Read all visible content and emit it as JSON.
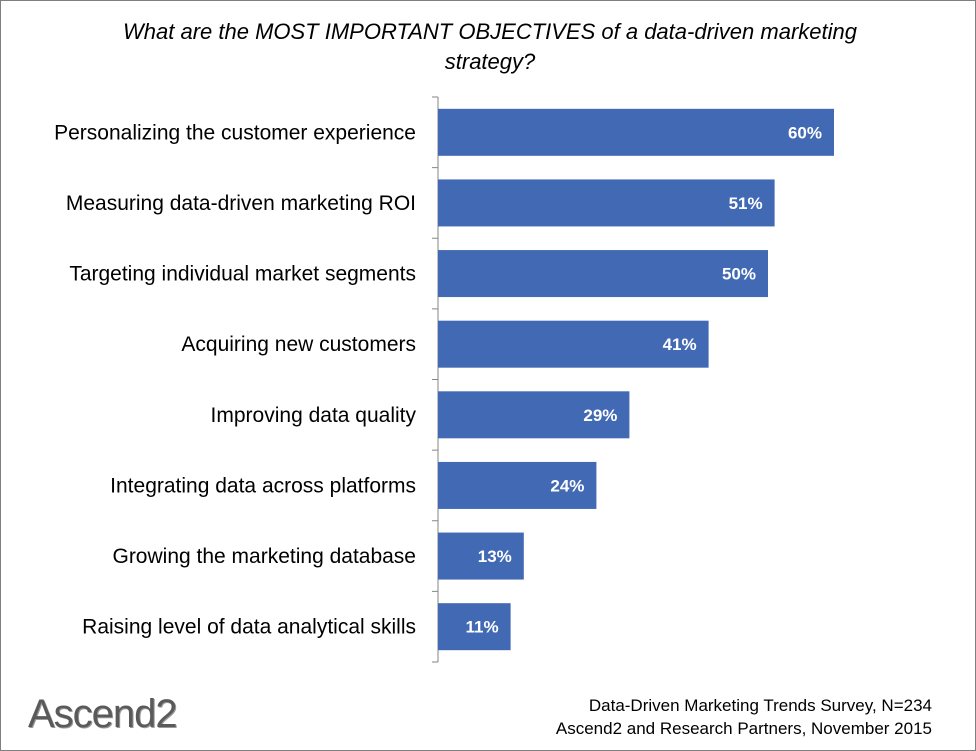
{
  "chart_data": {
    "type": "bar",
    "orientation": "horizontal",
    "title": "What are the MOST IMPORTANT OBJECTIVES of a data-driven marketing strategy?",
    "categories": [
      "Personalizing the customer experience",
      "Measuring data-driven marketing ROI",
      "Targeting individual market segments",
      "Acquiring new customers",
      "Improving data quality",
      "Integrating data across platforms",
      "Growing the marketing database",
      "Raising level of data analytical skills"
    ],
    "values": [
      60,
      51,
      50,
      41,
      29,
      24,
      13,
      11
    ],
    "value_labels": [
      "60%",
      "51%",
      "50%",
      "41%",
      "29%",
      "24%",
      "13%",
      "11%"
    ],
    "unit": "%",
    "xlim": [
      0,
      100
    ],
    "bar_color": "#4169b4",
    "grid": false,
    "legend": "none"
  },
  "footer": {
    "logo_text": "Ascend2",
    "source_line1": "Data-Driven Marketing Trends Survey, N=234",
    "source_line2": "Ascend2 and Research Partners, November 2015"
  }
}
